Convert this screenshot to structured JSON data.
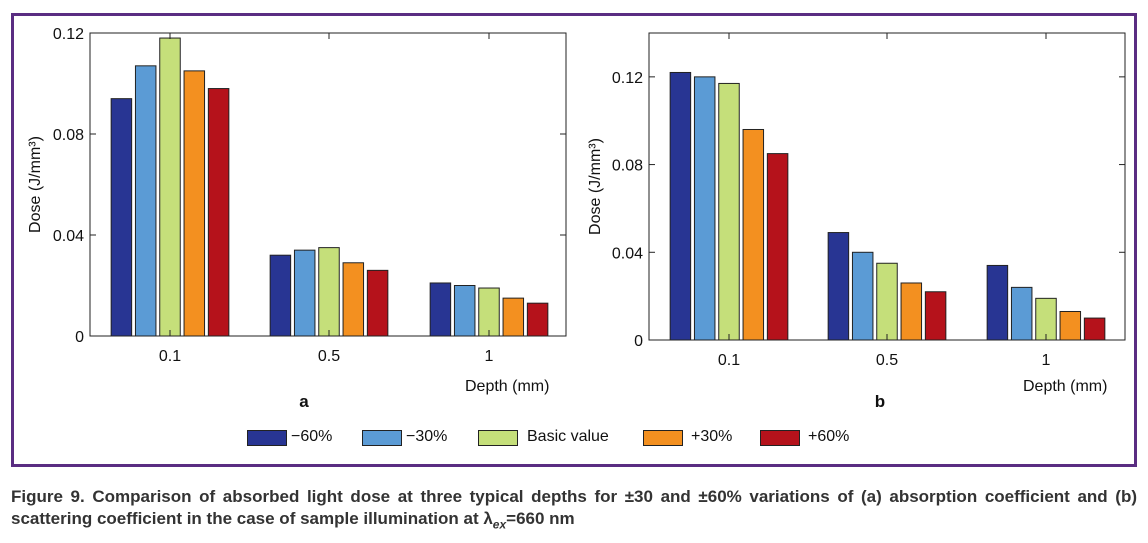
{
  "legend": [
    {
      "label": "−60%",
      "color": "#283593"
    },
    {
      "label": "−30%",
      "color": "#5b9bd5"
    },
    {
      "label": "Basic value",
      "color": "#c5df7a"
    },
    {
      "label": "+30%",
      "color": "#f39020"
    },
    {
      "label": "+60%",
      "color": "#b5121b"
    }
  ],
  "caption": {
    "main": "Figure 9. Comparison of absorbed light dose at three typical depths for ±30 and ±60% variations of (a) absorption coefficient and (b) scattering coefficient in the case of sample illumination at λ",
    "subscript": "ex",
    "suffix": "=660 nm"
  },
  "chart_data": [
    {
      "type": "bar",
      "panel": "a",
      "xlabel": "Depth (mm)",
      "ylabel": "Dose (J/mm³)",
      "categories": [
        "0.1",
        "0.5",
        "1"
      ],
      "ylim": [
        0,
        0.12
      ],
      "yticks": [
        "0",
        "0.04",
        "0.08",
        "0.12"
      ],
      "series": [
        {
          "name": "−60%",
          "values": [
            0.094,
            0.032,
            0.021
          ]
        },
        {
          "name": "−30%",
          "values": [
            0.107,
            0.034,
            0.02
          ]
        },
        {
          "name": "Basic value",
          "values": [
            0.118,
            0.035,
            0.019
          ]
        },
        {
          "name": "+30%",
          "values": [
            0.105,
            0.029,
            0.015
          ]
        },
        {
          "name": "+60%",
          "values": [
            0.098,
            0.026,
            0.013
          ]
        }
      ]
    },
    {
      "type": "bar",
      "panel": "b",
      "xlabel": "Depth (mm)",
      "ylabel": "Dose (J/mm³)",
      "categories": [
        "0.1",
        "0.5",
        "1"
      ],
      "ylim": [
        0,
        0.14
      ],
      "yticks": [
        "0",
        "0.04",
        "0.08",
        "0.12"
      ],
      "series": [
        {
          "name": "−60%",
          "values": [
            0.122,
            0.049,
            0.034
          ]
        },
        {
          "name": "−30%",
          "values": [
            0.12,
            0.04,
            0.024
          ]
        },
        {
          "name": "Basic value",
          "values": [
            0.117,
            0.035,
            0.019
          ]
        },
        {
          "name": "+30%",
          "values": [
            0.096,
            0.026,
            0.013
          ]
        },
        {
          "name": "+60%",
          "values": [
            0.085,
            0.022,
            0.01
          ]
        }
      ]
    }
  ]
}
